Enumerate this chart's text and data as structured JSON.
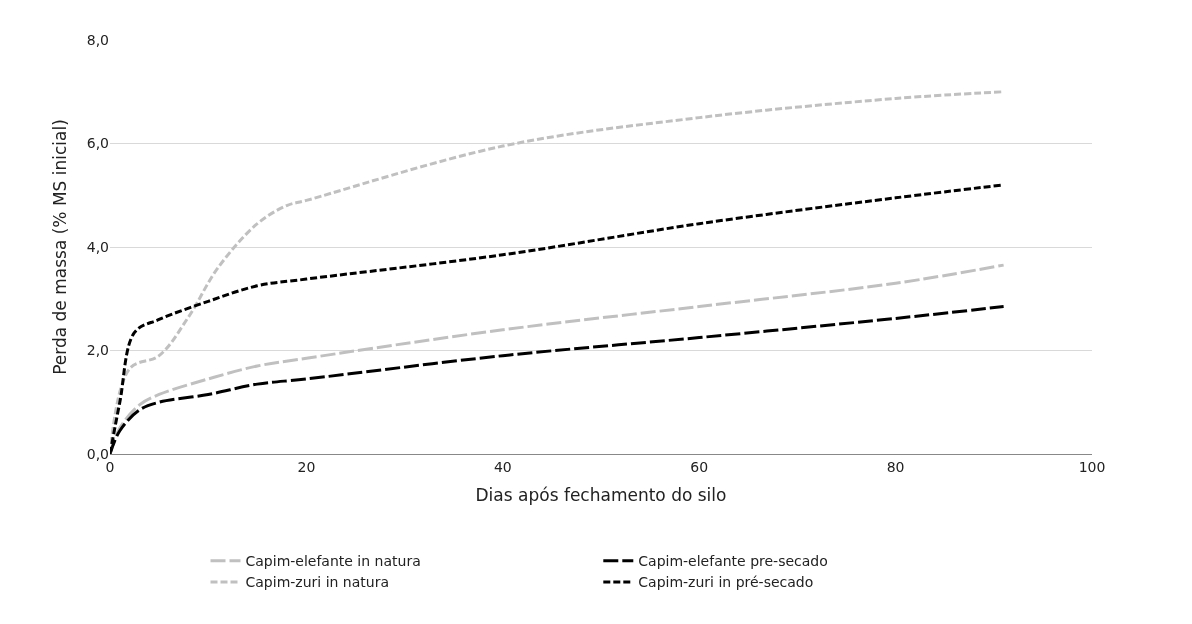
{
  "chart_data": {
    "type": "line",
    "xlabel": "Dias após fechamento do silo",
    "ylabel": "Perda de massa (% MS inicial)",
    "xlim": [
      0,
      100
    ],
    "xticks": [
      0,
      20,
      40,
      60,
      80,
      100
    ],
    "ylim": [
      0,
      8
    ],
    "yticks": [
      {
        "value": 0,
        "label": "0,0"
      },
      {
        "value": 2,
        "label": "2,0"
      },
      {
        "value": 4,
        "label": "4,0"
      },
      {
        "value": 6,
        "label": "6,0"
      },
      {
        "value": 8,
        "label": "8,0"
      }
    ],
    "grid": "y",
    "legend": "bottom",
    "marker": "none",
    "series": [
      {
        "name": "Capim-elefante in natura",
        "color": "#c0c0c0",
        "line_style": "dashed",
        "x": [
          0,
          1,
          3,
          5,
          10,
          15,
          20,
          40,
          60,
          80,
          91
        ],
        "values": [
          0,
          0.5,
          0.95,
          1.15,
          1.45,
          1.7,
          1.85,
          2.4,
          2.85,
          3.3,
          3.65
        ]
      },
      {
        "name": "Capim-elefante pre-secado",
        "color": "#000000",
        "line_style": "dashed",
        "x": [
          0,
          1,
          3,
          5,
          10,
          15,
          20,
          40,
          60,
          80,
          91
        ],
        "values": [
          0,
          0.45,
          0.85,
          1.0,
          1.15,
          1.35,
          1.45,
          1.9,
          2.25,
          2.62,
          2.85
        ]
      },
      {
        "name": "Capim-zuri in natura",
        "color": "#c0c0c0",
        "line_style": "dotted",
        "x": [
          0,
          2,
          5,
          8,
          11,
          15,
          18,
          20,
          40,
          60,
          80,
          91
        ],
        "values": [
          0,
          1.65,
          1.9,
          2.65,
          3.6,
          4.45,
          4.8,
          4.9,
          5.95,
          6.5,
          6.87,
          7.0
        ]
      },
      {
        "name": "Capim-zuri in pré-secado",
        "color": "#000000",
        "line_style": "dotted",
        "x": [
          0,
          1,
          2.5,
          5,
          10,
          15,
          20,
          40,
          60,
          80,
          91
        ],
        "values": [
          0,
          1.0,
          2.35,
          2.6,
          2.95,
          3.25,
          3.38,
          3.85,
          4.45,
          4.95,
          5.2
        ]
      }
    ]
  }
}
